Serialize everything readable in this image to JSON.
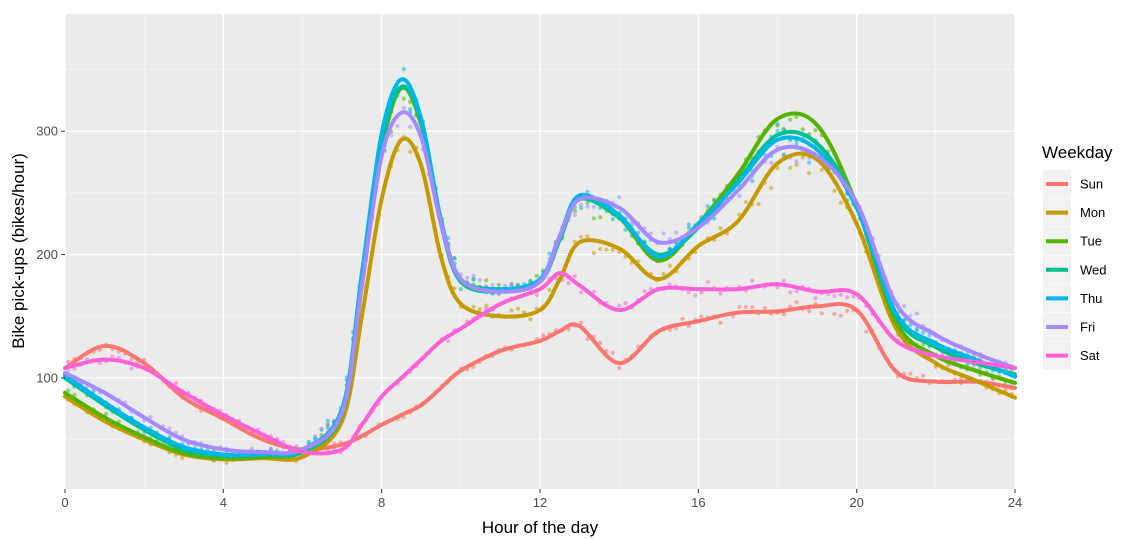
{
  "chart_data": {
    "type": "line",
    "xlabel": "Hour of the day",
    "ylabel": "Bike pick-ups (bikes/hour)",
    "xlim": [
      0,
      24
    ],
    "ylim": [
      10,
      395
    ],
    "x_ticks": [
      0,
      4,
      8,
      12,
      16,
      20,
      24
    ],
    "x_tick_labels": [
      "0",
      "4",
      "8",
      "12",
      "16",
      "20",
      "24"
    ],
    "y_ticks": [
      100,
      200,
      300
    ],
    "y_tick_labels": [
      "100",
      "200",
      "300"
    ],
    "grid": true,
    "background": "#ebebeb",
    "legend": {
      "title": "Weekday",
      "placement": "right"
    },
    "x": [
      0,
      1,
      2,
      3,
      4,
      5,
      6,
      7,
      7.5,
      8,
      8.5,
      9,
      9.5,
      10,
      11,
      12,
      12.5,
      13,
      14,
      15,
      16,
      17,
      18,
      19,
      20,
      21,
      22,
      23,
      24
    ],
    "series": [
      {
        "name": "Sun",
        "color": "#F8766D",
        "values": [
          108,
          126,
          112,
          84,
          67,
          50,
          42,
          46,
          53,
          62,
          70,
          78,
          92,
          106,
          122,
          130,
          138,
          142,
          112,
          138,
          146,
          153,
          154,
          158,
          155,
          105,
          97,
          97,
          92
        ]
      },
      {
        "name": "Mon",
        "color": "#C49A00",
        "values": [
          85,
          65,
          50,
          38,
          34,
          35,
          36,
          65,
          150,
          245,
          293,
          272,
          198,
          160,
          150,
          155,
          180,
          210,
          205,
          180,
          207,
          227,
          274,
          277,
          225,
          140,
          112,
          98,
          84
        ]
      },
      {
        "name": "Tue",
        "color": "#53B400",
        "values": [
          88,
          68,
          52,
          39,
          35,
          36,
          40,
          70,
          175,
          285,
          335,
          305,
          225,
          180,
          172,
          178,
          215,
          245,
          230,
          195,
          225,
          265,
          310,
          305,
          240,
          145,
          118,
          106,
          96
        ]
      },
      {
        "name": "Wed",
        "color": "#00C094",
        "values": [
          100,
          78,
          58,
          42,
          37,
          38,
          40,
          72,
          180,
          290,
          336,
          308,
          225,
          178,
          170,
          178,
          212,
          245,
          230,
          200,
          222,
          260,
          297,
          290,
          240,
          150,
          125,
          112,
          103
        ]
      },
      {
        "name": "Thu",
        "color": "#00B6EB",
        "values": [
          102,
          80,
          60,
          44,
          38,
          38,
          42,
          75,
          185,
          298,
          342,
          310,
          228,
          180,
          172,
          180,
          215,
          248,
          232,
          198,
          225,
          258,
          293,
          285,
          238,
          152,
          128,
          115,
          101
        ]
      },
      {
        "name": "Fri",
        "color": "#A58AFF",
        "values": [
          104,
          88,
          68,
          50,
          42,
          40,
          42,
          72,
          175,
          280,
          315,
          295,
          225,
          180,
          170,
          178,
          215,
          245,
          238,
          210,
          222,
          252,
          285,
          280,
          242,
          160,
          135,
          120,
          108
        ]
      },
      {
        "name": "Sat",
        "color": "#FB61D7",
        "values": [
          108,
          115,
          108,
          88,
          70,
          54,
          40,
          42,
          62,
          85,
          100,
          115,
          130,
          140,
          160,
          172,
          185,
          175,
          155,
          172,
          172,
          172,
          176,
          170,
          168,
          130,
          118,
          113,
          108
        ]
      }
    ]
  }
}
